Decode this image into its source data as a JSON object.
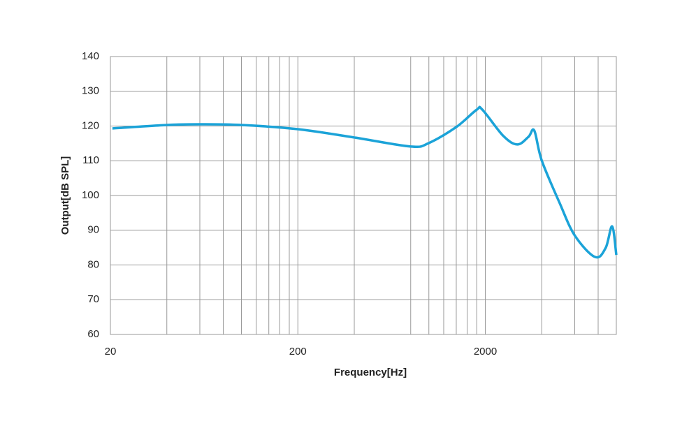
{
  "chart_data": {
    "type": "line",
    "xlabel": "Frequency[Hz]",
    "ylabel": "Output[dB SPL]",
    "x_scale": "log",
    "xlim": [
      20,
      10000
    ],
    "xticks": [
      20,
      200,
      2000
    ],
    "x_grid_lines": [
      40,
      60,
      80,
      100,
      120,
      140,
      160,
      180,
      400,
      800,
      1000,
      1200,
      1400,
      1600,
      1800,
      4000,
      6000,
      8000
    ],
    "ylim": [
      60,
      140
    ],
    "yticks": [
      60,
      70,
      80,
      90,
      100,
      110,
      120,
      130,
      140
    ],
    "grid": true,
    "series": [
      {
        "color": "#1ba3d8",
        "x": [
          20.5,
          40,
          60,
          100,
          200,
          400,
          800,
          1000,
          1400,
          1800,
          1930,
          2500,
          2970,
          3400,
          3650,
          4000,
          4970,
          6000,
          7700,
          8770,
          9500,
          10000
        ],
        "values": [
          119.3,
          120.3,
          120.5,
          120.3,
          119.1,
          116.7,
          114.1,
          115.1,
          119.7,
          124.7,
          124.7,
          117.1,
          114.7,
          116.9,
          118.7,
          110.1,
          98.0,
          88.5,
          82.3,
          84.9,
          91.1,
          82.9
        ]
      }
    ]
  }
}
